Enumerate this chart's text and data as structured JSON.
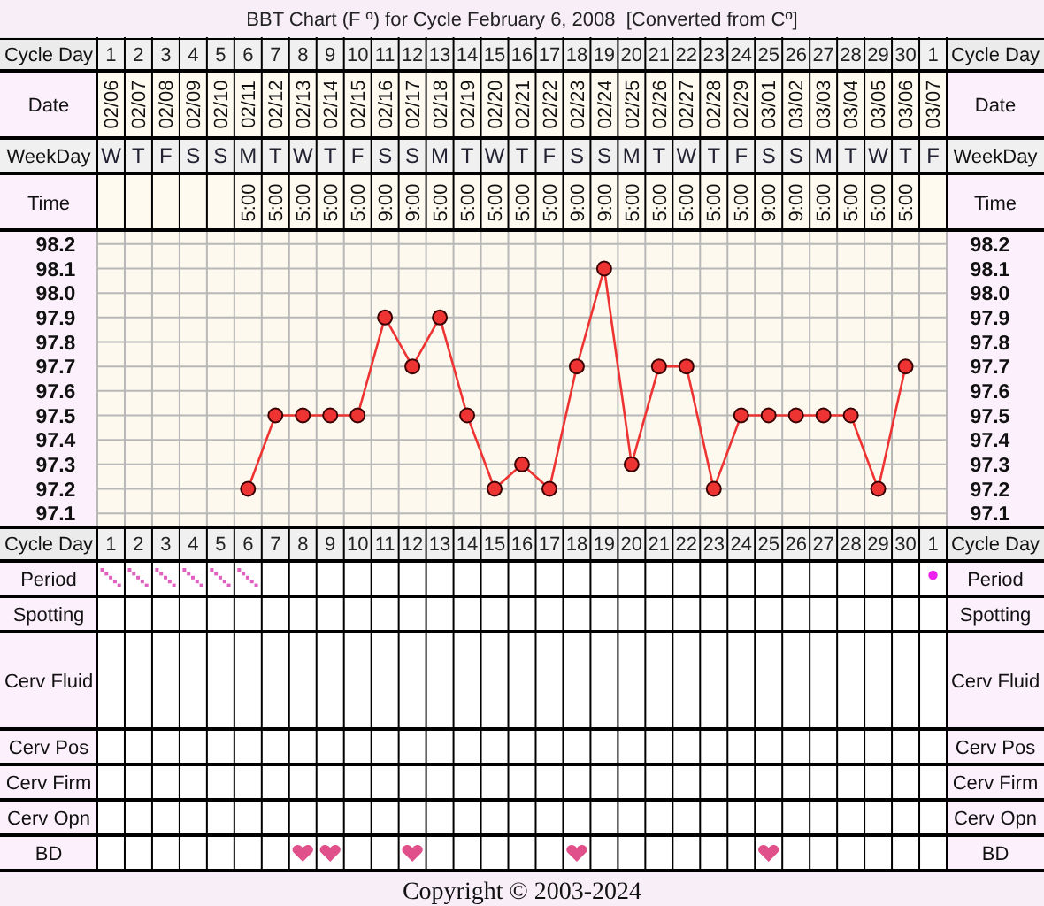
{
  "chart_data": [
    {
      "type": "other",
      "y_categories": [
        "Date",
        "WeekDay",
        "Time"
      ],
      "y2_categories": [
        "Date",
        "WeekDay",
        "Time"
      ],
      "cell_labels": [
        [
          "02/06",
          "02/07",
          "02/08",
          "02/09",
          "02/10",
          "02/11",
          "02/12",
          "02/13",
          "02/14",
          "02/15",
          "02/16",
          "02/17",
          "02/18",
          "02/19",
          "02/20",
          "02/21",
          "02/22",
          "02/23",
          "02/24",
          "02/25",
          "02/26",
          "02/27",
          "02/28",
          "02/29",
          "03/01",
          "03/02",
          "03/03",
          "03/04",
          "03/05",
          "03/06",
          "03/07"
        ],
        [
          "W",
          "T",
          "F",
          "S",
          "S",
          "M",
          "T",
          "W",
          "T",
          "F",
          "S",
          "S",
          "M",
          "T",
          "W",
          "T",
          "F",
          "S",
          "S",
          "M",
          "T",
          "W",
          "T",
          "F",
          "S",
          "S",
          "M",
          "T",
          "W",
          "T",
          "F"
        ],
        [
          null,
          null,
          null,
          null,
          null,
          "5:00",
          "5:00",
          "5:00",
          "5:00",
          "5:00",
          "9:00",
          "9:00",
          "5:00",
          "5:00",
          "5:00",
          "5:00",
          "5:00",
          "9:00",
          "9:00",
          "5:00",
          "5:00",
          "5:00",
          "5:00",
          "5:00",
          "9:00",
          "9:00",
          "5:00",
          "5:00",
          "5:00",
          "5:00",
          null
        ]
      ]
    },
    {
      "type": "line",
      "title": "BBT Chart (F º) for Cycle February 6, 2008  [Converted from Cº]",
      "xlabel": "Cycle Day",
      "categories": [
        "1",
        "2",
        "3",
        "4",
        "5",
        "6",
        "7",
        "8",
        "9",
        "10",
        "11",
        "12",
        "13",
        "14",
        "15",
        "16",
        "17",
        "18",
        "19",
        "20",
        "21",
        "22",
        "23",
        "24",
        "25",
        "26",
        "27",
        "28",
        "29",
        "30",
        "1"
      ],
      "values": [
        null,
        null,
        null,
        null,
        null,
        97.2,
        97.5,
        97.5,
        97.5,
        97.5,
        97.9,
        97.7,
        97.9,
        97.5,
        97.2,
        97.3,
        97.2,
        97.7,
        98.1,
        97.3,
        97.7,
        97.7,
        97.2,
        97.5,
        97.5,
        97.5,
        97.5,
        97.5,
        97.2,
        97.7,
        null
      ],
      "color": "#ee3333",
      "marker": "circle",
      "ylim": [
        97.05,
        98.25
      ],
      "yticks": [
        97.1,
        97.2,
        97.3,
        97.4,
        97.5,
        97.6,
        97.7,
        97.8,
        97.9,
        {
          "value": 98,
          "label": "98.0"
        },
        98.1,
        98.2
      ],
      "y2lim": [
        97.05,
        98.25
      ],
      "y2ticks": [
        97.1,
        97.2,
        97.3,
        97.4,
        97.5,
        97.6,
        97.7,
        97.8,
        97.9,
        {
          "value": 98,
          "label": "98.0"
        },
        98.1,
        98.2
      ],
      "grid": true
    },
    {
      "type": "other",
      "y_categories": [
        "Period",
        "Spotting",
        "Cerv Fluid",
        "Cerv Pos",
        "Cerv Firm",
        "Cerv Opn",
        "BD"
      ],
      "y2_categories": [
        "Period",
        "Spotting",
        "Cerv Fluid",
        "Cerv Pos",
        "Cerv Firm",
        "Cerv Opn",
        "BD"
      ],
      "annotations": [
        "Copyright © 2003-2024"
      ]
    }
  ]
}
